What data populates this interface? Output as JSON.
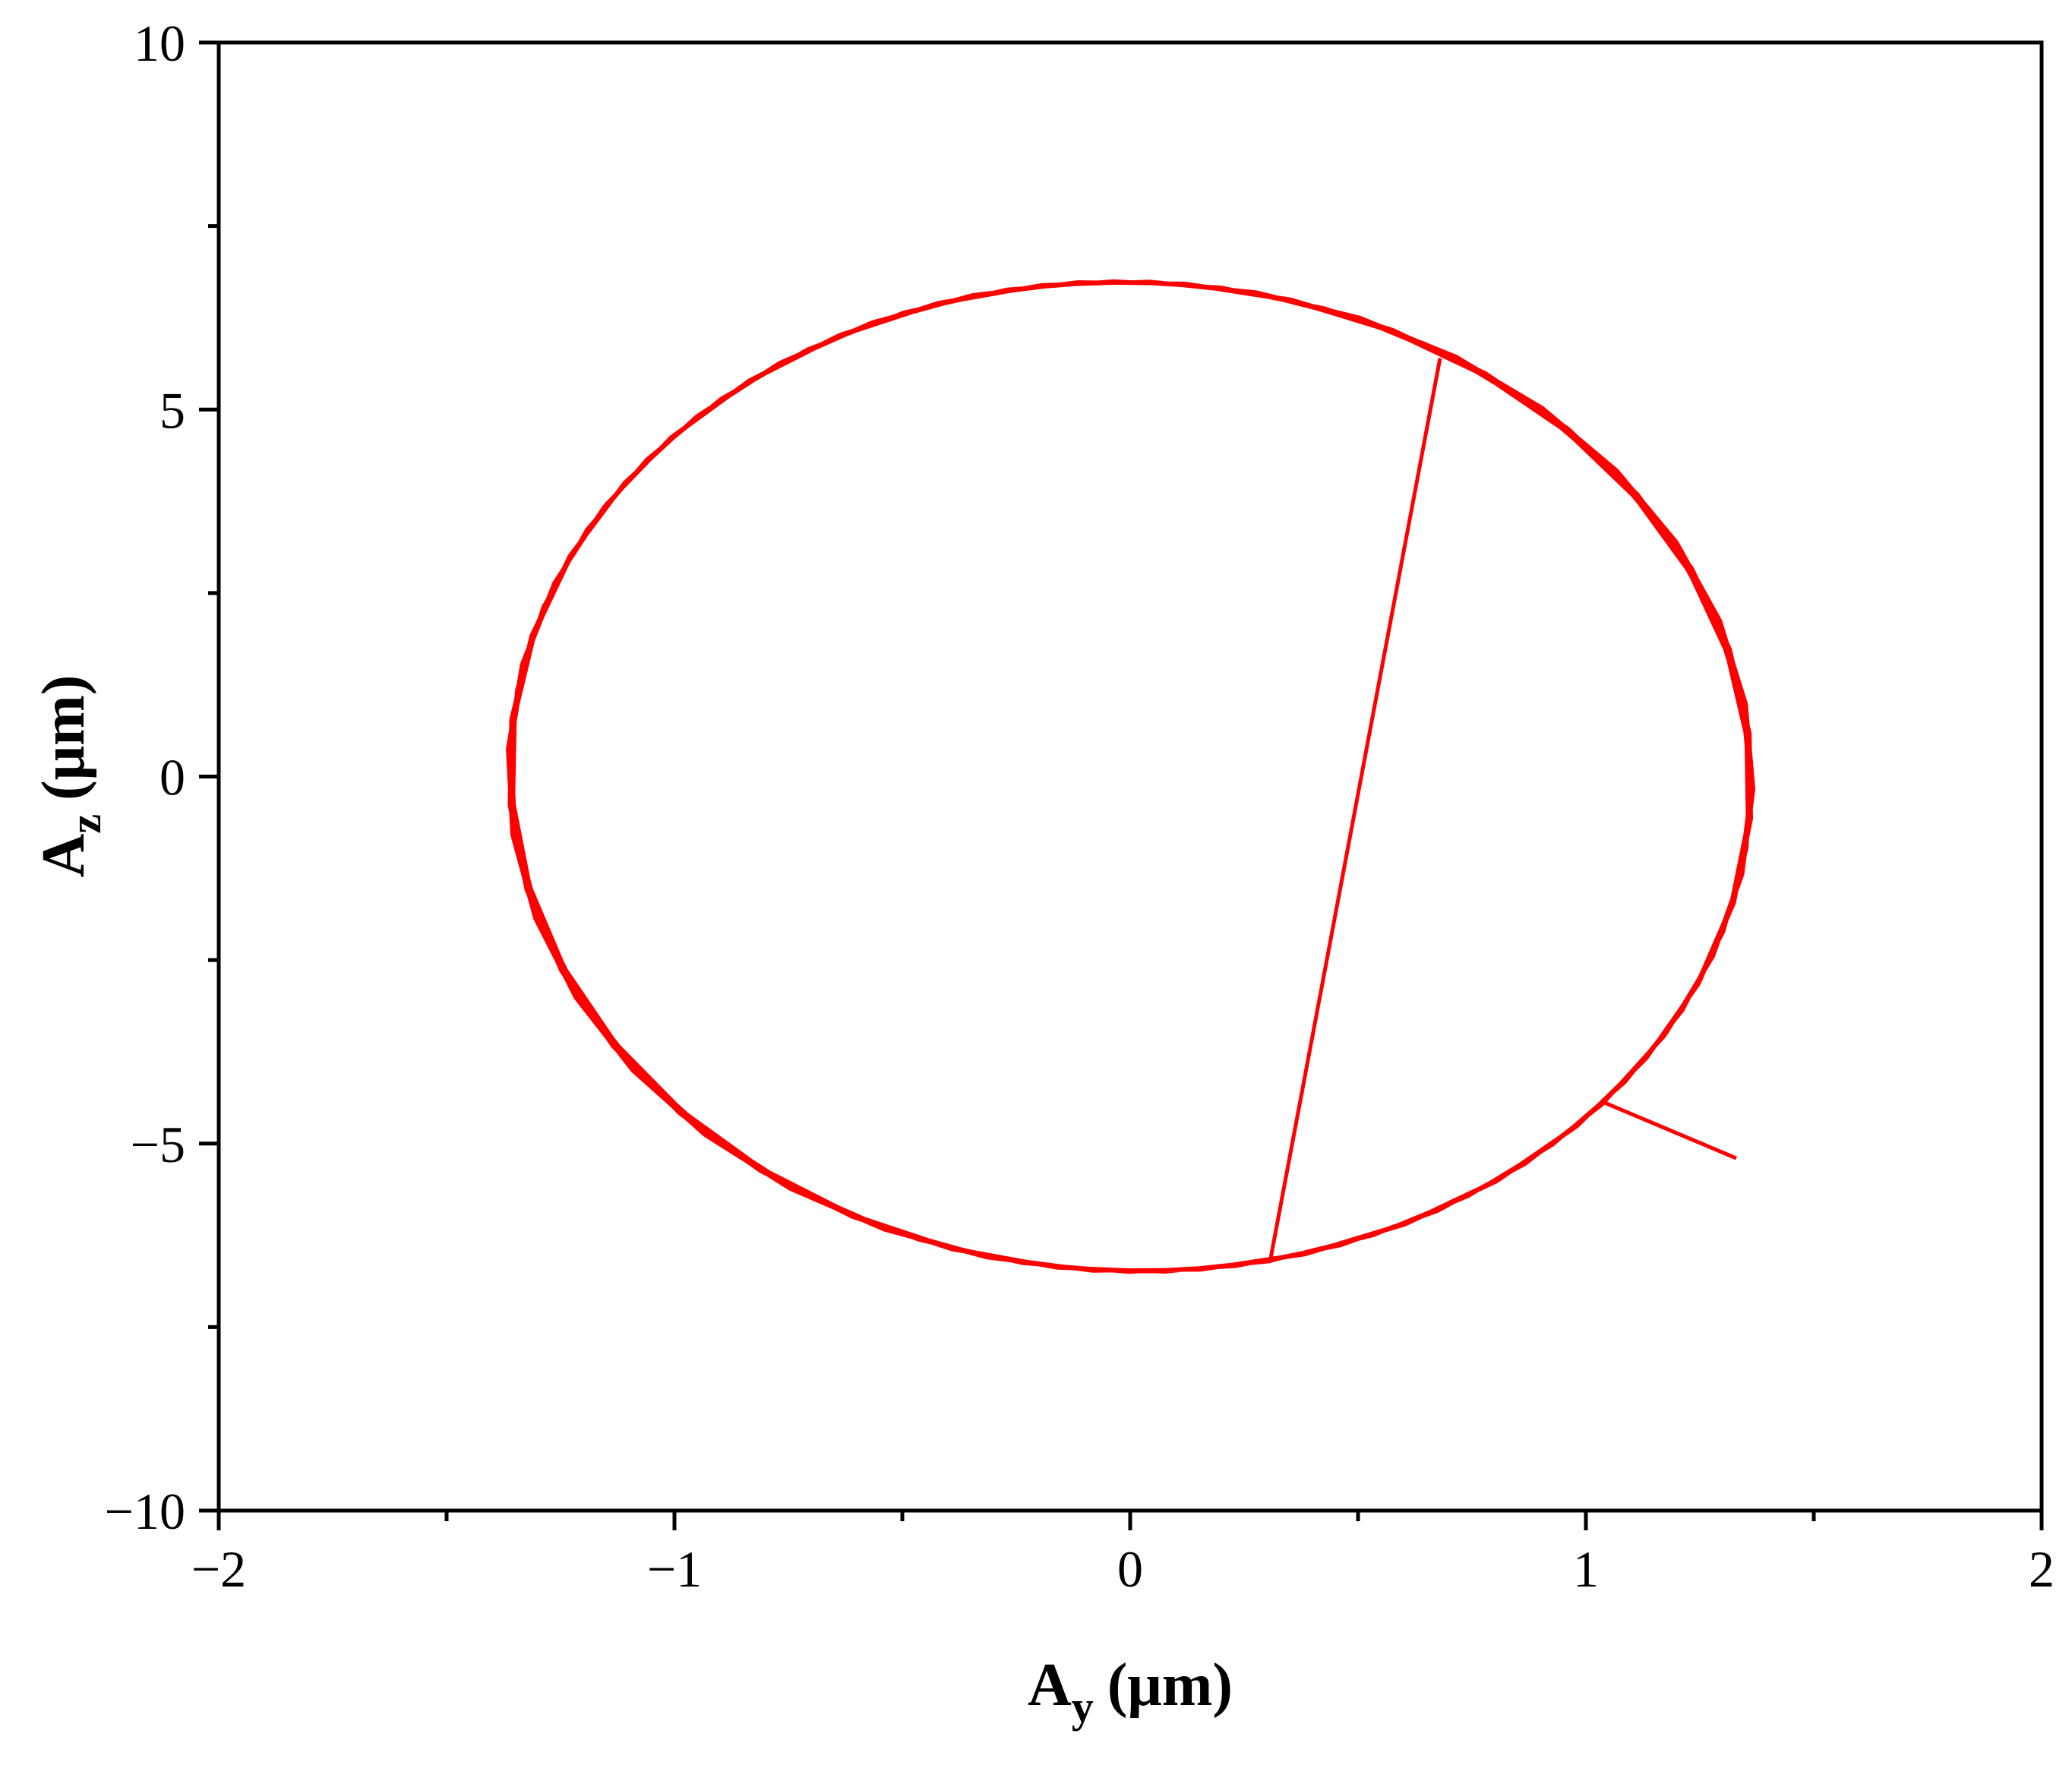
{
  "chart_data": {
    "type": "line",
    "title": "",
    "xlabel": {
      "main": "A",
      "sub": "y",
      "unit": "(μm)"
    },
    "ylabel": {
      "main": "A",
      "sub": "z",
      "unit": "(μm)"
    },
    "xlim": [
      -2,
      2
    ],
    "ylim": [
      -10,
      10
    ],
    "x_ticks": [
      -2,
      -1,
      0,
      1,
      2
    ],
    "x_tick_labels": [
      "−2",
      "−1",
      "0",
      "1",
      "2"
    ],
    "x_minor_ticks": [
      -1.5,
      -0.5,
      0.5,
      1.5
    ],
    "y_ticks": [
      -10,
      -5,
      0,
      5,
      10
    ],
    "y_tick_labels": [
      "−10",
      "−5",
      "0",
      "5",
      "10"
    ],
    "y_minor_ticks": [
      -7.5,
      -2.5,
      2.5,
      7.5
    ],
    "grid": false,
    "legend": "none",
    "series": [
      {
        "color": "#ff0000",
        "turns": 5,
        "start": [
          1.33,
          -5.2
        ],
        "end": [
          0.68,
          5.7
        ],
        "rx": 1.37,
        "rz": 6.75,
        "start_major_tilt": -0.17,
        "end_major_tilt": -0.47,
        "start_phase": -0.72
      }
    ]
  }
}
